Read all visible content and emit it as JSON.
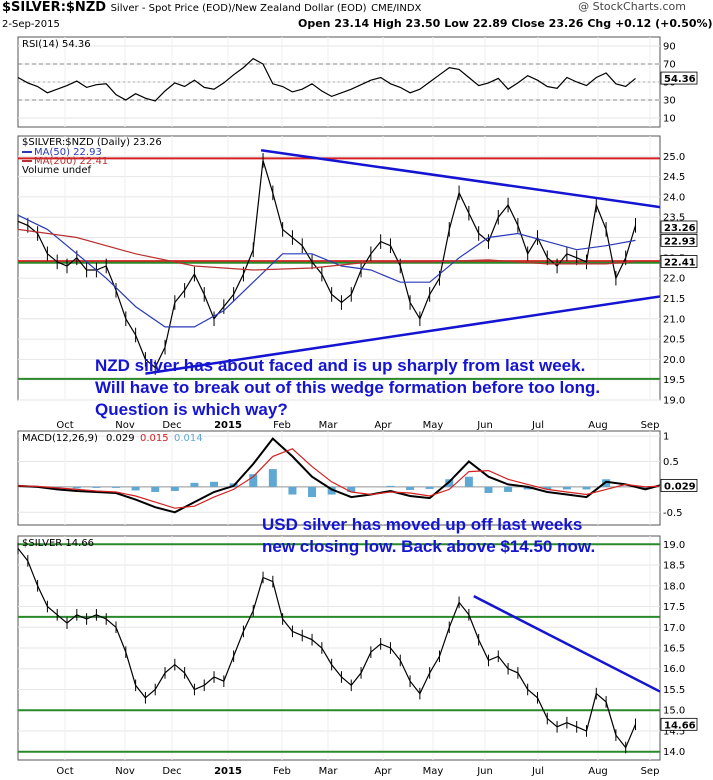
{
  "header": {
    "symbol": "$SILVER:$NZD",
    "description": "Silver - Spot Price (EOD)/New Zealand Dollar (EOD)",
    "exchange": "CME/INDX",
    "date": "2-Sep-2015",
    "open_label": "Open",
    "open": "23.14",
    "high_label": "High",
    "high": "23.50",
    "low_label": "Low",
    "low": "22.89",
    "close_label": "Close",
    "close": "23.26",
    "chg_label": "Chg",
    "chg": "+0.12 (+0.50%)",
    "watermark": "@ StockCharts.com"
  },
  "chart_data": [
    {
      "type": "line",
      "name": "rsi_panel",
      "legend": "RSI(14) 54.36",
      "value_tag": "54.36",
      "yticks": [
        10,
        30,
        50,
        70,
        90
      ],
      "ylim": [
        0,
        100
      ],
      "overbought": 70,
      "oversold": 30,
      "series": [
        {
          "name": "RSI(14)",
          "x": [
            0,
            10,
            20,
            30,
            40,
            50,
            60,
            70,
            80,
            90,
            100,
            110,
            120,
            130,
            140,
            150,
            160,
            170,
            180,
            190,
            200,
            210,
            220,
            230,
            240,
            250,
            260,
            270,
            280,
            290,
            300,
            310,
            320,
            330,
            340,
            350,
            360,
            370,
            380,
            390,
            400,
            410,
            420,
            430,
            440,
            450,
            460,
            470,
            480,
            490,
            500,
            510,
            520,
            530,
            540,
            550,
            560,
            570,
            580,
            590,
            600,
            610,
            620,
            630
          ],
          "values": [
            55,
            49,
            45,
            38,
            42,
            46,
            51,
            44,
            47,
            48,
            36,
            30,
            37,
            32,
            29,
            40,
            49,
            45,
            52,
            44,
            42,
            49,
            58,
            66,
            76,
            70,
            48,
            45,
            39,
            42,
            48,
            40,
            34,
            38,
            42,
            47,
            52,
            55,
            48,
            44,
            38,
            42,
            50,
            58,
            66,
            64,
            55,
            46,
            49,
            54,
            42,
            49,
            57,
            52,
            45,
            43,
            55,
            50,
            46,
            55,
            60,
            48,
            45,
            54
          ]
        }
      ]
    },
    {
      "type": "line",
      "name": "price_panel_nzd",
      "legend": "$SILVER:$NZD (Daily) 23.26",
      "legend_ma50": "MA(50) 22.93",
      "legend_ma200": "MA(200) 22.41",
      "legend_vol": "Volume undef",
      "ylim": [
        19.0,
        25.5
      ],
      "yticks": [
        19.0,
        19.5,
        20.0,
        20.5,
        21.0,
        21.5,
        22.0,
        22.5,
        23.0,
        23.5,
        24.0,
        24.5,
        25.0
      ],
      "tags": [
        {
          "v": 23.26,
          "label": "23.26"
        },
        {
          "v": 22.93,
          "label": "22.93"
        },
        {
          "v": 22.41,
          "label": "22.41"
        }
      ],
      "horizontal_lines": [
        {
          "v": 24.95,
          "color": "#d42020"
        },
        {
          "v": 22.42,
          "color": "#d42020"
        },
        {
          "v": 22.38,
          "color": "#2a8a2a"
        },
        {
          "v": 19.52,
          "color": "#2a8a2a"
        }
      ],
      "trendlines": [
        {
          "x": [
            248,
            655
          ],
          "y": [
            25.15,
            23.75
          ]
        },
        {
          "x": [
            130,
            655
          ],
          "y": [
            19.65,
            21.55
          ]
        }
      ],
      "series": [
        {
          "name": "Price",
          "x": [
            0,
            10,
            20,
            30,
            40,
            50,
            60,
            70,
            80,
            90,
            100,
            110,
            120,
            130,
            140,
            150,
            160,
            170,
            180,
            190,
            200,
            210,
            220,
            230,
            240,
            250,
            260,
            270,
            280,
            290,
            300,
            310,
            320,
            330,
            340,
            350,
            360,
            370,
            380,
            390,
            400,
            410,
            420,
            430,
            440,
            450,
            460,
            470,
            480,
            490,
            500,
            510,
            520,
            530,
            540,
            550,
            560,
            570,
            580,
            590,
            600,
            610,
            620,
            630
          ],
          "values": [
            23.4,
            23.3,
            23.1,
            22.6,
            22.4,
            22.3,
            22.5,
            22.2,
            22.2,
            22.3,
            21.7,
            21.0,
            20.6,
            20.0,
            19.8,
            20.3,
            21.4,
            21.7,
            22.1,
            21.6,
            21.0,
            21.3,
            21.6,
            22.1,
            22.7,
            24.9,
            24.1,
            23.2,
            23.0,
            22.8,
            22.4,
            22.1,
            21.6,
            21.4,
            21.6,
            22.2,
            22.6,
            22.9,
            22.8,
            22.3,
            21.4,
            21.0,
            21.6,
            22.0,
            23.2,
            24.1,
            23.6,
            23.1,
            22.9,
            23.5,
            23.8,
            23.3,
            22.6,
            23.0,
            22.5,
            22.3,
            22.6,
            22.5,
            22.4,
            23.8,
            23.2,
            22.0,
            22.5,
            23.3
          ]
        },
        {
          "name": "MA(50)",
          "x": [
            0,
            30,
            60,
            90,
            120,
            150,
            180,
            210,
            240,
            270,
            300,
            330,
            360,
            390,
            420,
            450,
            480,
            510,
            540,
            570,
            600,
            630
          ],
          "values": [
            23.55,
            23.2,
            22.6,
            22.0,
            21.3,
            20.8,
            20.8,
            21.2,
            21.9,
            22.6,
            22.6,
            22.3,
            22.2,
            21.9,
            21.9,
            22.5,
            23.0,
            23.1,
            22.9,
            22.7,
            22.8,
            22.93
          ]
        },
        {
          "name": "MA(200)",
          "x": [
            0,
            60,
            120,
            180,
            240,
            300,
            360,
            420,
            480,
            540,
            600,
            630
          ],
          "values": [
            23.2,
            23.0,
            22.6,
            22.3,
            22.2,
            22.25,
            22.4,
            22.4,
            22.45,
            22.35,
            22.35,
            22.41
          ]
        }
      ],
      "annotation": [
        "NZD silver has about faced and is up sharply from last week.",
        "Will have to break out of this wedge formation before too long.",
        "Question is which way?"
      ]
    },
    {
      "type": "line",
      "name": "macd_panel",
      "legend_prefix": "MACD(12,26,9)",
      "legend_macd": "0.029",
      "legend_signal": "0.015",
      "legend_hist": "0.014",
      "value_tag": "0.029",
      "ylim": [
        -0.75,
        1.1
      ],
      "yticks": [
        -0.5,
        0.0,
        0.5,
        1.0
      ],
      "series": [
        {
          "name": "MACD",
          "x": [
            0,
            20,
            40,
            60,
            80,
            100,
            120,
            140,
            160,
            180,
            200,
            220,
            240,
            260,
            280,
            300,
            320,
            340,
            360,
            380,
            400,
            420,
            440,
            460,
            480,
            500,
            520,
            540,
            560,
            580,
            600,
            620,
            640,
            655
          ],
          "values": [
            0.02,
            0.0,
            -0.05,
            -0.08,
            -0.1,
            -0.12,
            -0.25,
            -0.4,
            -0.5,
            -0.3,
            -0.1,
            0.02,
            0.45,
            0.95,
            0.6,
            0.2,
            -0.05,
            -0.2,
            -0.15,
            -0.08,
            -0.18,
            -0.22,
            0.1,
            0.5,
            0.2,
            0.05,
            0.0,
            -0.1,
            -0.15,
            -0.2,
            0.1,
            0.05,
            -0.05,
            0.029
          ]
        },
        {
          "name": "Signal",
          "x": [
            0,
            20,
            40,
            60,
            80,
            100,
            120,
            140,
            160,
            180,
            200,
            220,
            240,
            260,
            280,
            300,
            320,
            340,
            360,
            380,
            400,
            420,
            440,
            460,
            480,
            500,
            520,
            540,
            560,
            580,
            600,
            620,
            640,
            655
          ],
          "values": [
            0.02,
            0.01,
            -0.02,
            -0.05,
            -0.08,
            -0.1,
            -0.18,
            -0.3,
            -0.42,
            -0.38,
            -0.2,
            -0.05,
            0.2,
            0.6,
            0.75,
            0.4,
            0.1,
            -0.1,
            -0.15,
            -0.1,
            -0.12,
            -0.18,
            -0.05,
            0.3,
            0.32,
            0.15,
            0.05,
            -0.05,
            -0.1,
            -0.15,
            -0.05,
            0.05,
            0.0,
            0.015
          ]
        }
      ],
      "annotation": [
        "USD silver has moved up off last weeks",
        "new closing low. Back above $14.50 now."
      ]
    },
    {
      "type": "line",
      "name": "price_panel_usd",
      "legend": "$SILVER 14.66",
      "value_tag": "14.66",
      "ylim": [
        13.8,
        19.2
      ],
      "yticks": [
        14.0,
        14.5,
        15.0,
        15.5,
        16.0,
        16.5,
        17.0,
        17.5,
        18.0,
        18.5,
        19.0
      ],
      "horizontal_lines": [
        {
          "v": 19.0,
          "color": "#2a8a2a"
        },
        {
          "v": 17.25,
          "color": "#2a8a2a"
        },
        {
          "v": 15.0,
          "color": "#2a8a2a"
        },
        {
          "v": 14.0,
          "color": "#2a8a2a"
        }
      ],
      "trendlines": [
        {
          "x": [
            465,
            655
          ],
          "y": [
            17.75,
            15.45
          ]
        }
      ],
      "series": [
        {
          "name": "Price",
          "x": [
            0,
            10,
            20,
            30,
            40,
            50,
            60,
            70,
            80,
            90,
            100,
            110,
            120,
            130,
            140,
            150,
            160,
            170,
            180,
            190,
            200,
            210,
            220,
            230,
            240,
            250,
            260,
            270,
            280,
            290,
            300,
            310,
            320,
            330,
            340,
            350,
            360,
            370,
            380,
            390,
            400,
            410,
            420,
            430,
            440,
            450,
            460,
            470,
            480,
            490,
            500,
            510,
            520,
            530,
            540,
            550,
            560,
            570,
            580,
            590,
            600,
            610,
            620,
            630
          ],
          "values": [
            18.9,
            18.6,
            18.0,
            17.5,
            17.3,
            17.1,
            17.3,
            17.2,
            17.3,
            17.2,
            17.0,
            16.4,
            15.6,
            15.3,
            15.5,
            15.9,
            16.1,
            15.9,
            15.5,
            15.6,
            15.8,
            15.7,
            16.3,
            16.9,
            17.4,
            18.2,
            18.1,
            17.2,
            16.9,
            16.8,
            16.7,
            16.5,
            16.1,
            15.8,
            15.6,
            15.9,
            16.4,
            16.6,
            16.5,
            16.2,
            15.7,
            15.4,
            15.9,
            16.3,
            17.0,
            17.6,
            17.3,
            16.7,
            16.2,
            16.3,
            16.0,
            15.9,
            15.5,
            15.3,
            14.8,
            14.6,
            14.7,
            14.6,
            14.5,
            15.4,
            15.2,
            14.4,
            14.1,
            14.66
          ]
        }
      ]
    }
  ],
  "x_axis_labels": [
    "Oct",
    "Nov",
    "Dec",
    "2015",
    "Feb",
    "Mar",
    "Apr",
    "May",
    "Jun",
    "Jul",
    "Aug",
    "Sep"
  ]
}
